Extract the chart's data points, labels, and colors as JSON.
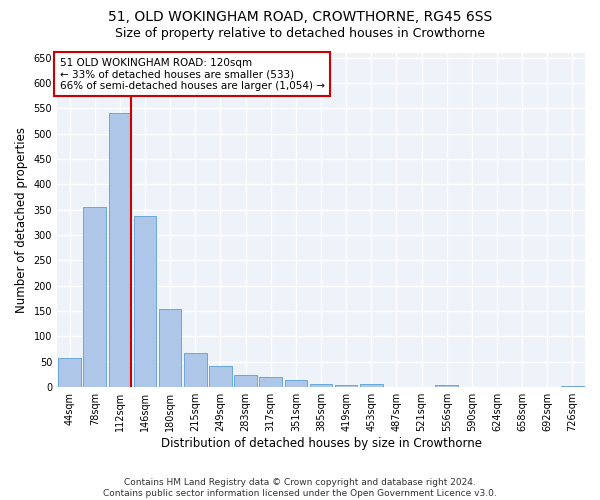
{
  "title1": "51, OLD WOKINGHAM ROAD, CROWTHORNE, RG45 6SS",
  "title2": "Size of property relative to detached houses in Crowthorne",
  "xlabel": "Distribution of detached houses by size in Crowthorne",
  "ylabel": "Number of detached properties",
  "footer1": "Contains HM Land Registry data © Crown copyright and database right 2024.",
  "footer2": "Contains public sector information licensed under the Open Government Licence v3.0.",
  "bin_labels": [
    "44sqm",
    "78sqm",
    "112sqm",
    "146sqm",
    "180sqm",
    "215sqm",
    "249sqm",
    "283sqm",
    "317sqm",
    "351sqm",
    "385sqm",
    "419sqm",
    "453sqm",
    "487sqm",
    "521sqm",
    "556sqm",
    "590sqm",
    "624sqm",
    "658sqm",
    "692sqm",
    "726sqm"
  ],
  "bar_values": [
    58,
    355,
    540,
    338,
    155,
    67,
    42,
    25,
    20,
    15,
    7,
    4,
    7,
    0,
    0,
    4,
    0,
    0,
    0,
    0,
    2
  ],
  "bar_color": "#aec6e8",
  "bar_edge_color": "#5a9fd4",
  "red_line_bin": 2,
  "red_line_color": "#cc0000",
  "annotation_text": "51 OLD WOKINGHAM ROAD: 120sqm\n← 33% of detached houses are smaller (533)\n66% of semi-detached houses are larger (1,054) →",
  "annotation_box_color": "#ffffff",
  "annotation_box_edge_color": "#cc0000",
  "ylim": [
    0,
    660
  ],
  "yticks": [
    0,
    50,
    100,
    150,
    200,
    250,
    300,
    350,
    400,
    450,
    500,
    550,
    600,
    650
  ],
  "background_color": "#eef2f9",
  "grid_color": "#ffffff",
  "title1_fontsize": 10,
  "title2_fontsize": 9,
  "xlabel_fontsize": 8.5,
  "ylabel_fontsize": 8.5,
  "tick_fontsize": 7,
  "annotation_fontsize": 7.5,
  "footer_fontsize": 6.5
}
